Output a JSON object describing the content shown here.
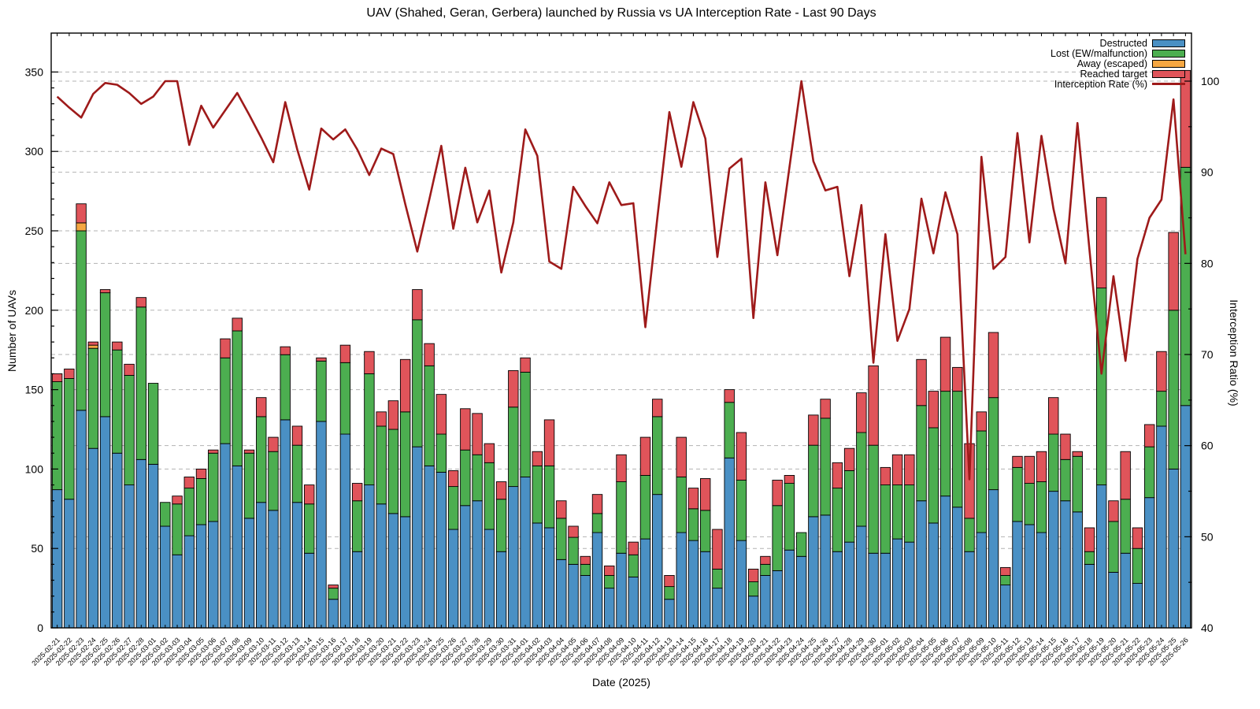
{
  "title": "UAV (Shahed, Geran, Gerbera) launched by Russia vs UA Interception Rate - Last 90 Days",
  "axes": {
    "left_title": "Number of UAVs",
    "right_title": "Interception Ratio (%)",
    "x_title": "Date (2025)",
    "left_ticks": [
      0,
      50,
      100,
      150,
      200,
      250,
      300,
      350
    ],
    "right_ticks": [
      40,
      50,
      60,
      70,
      80,
      90,
      100
    ]
  },
  "legend": {
    "items": [
      {
        "label": "Destructed",
        "color": "#4a90c4",
        "type": "box"
      },
      {
        "label": "Lost (EW/malfunction)",
        "color": "#4cae50",
        "type": "box"
      },
      {
        "label": "Away (escaped)",
        "color": "#f5a742",
        "type": "box"
      },
      {
        "label": "Reached target",
        "color": "#e0545a",
        "type": "box"
      },
      {
        "label": "Interception Rate (%)",
        "color": "#9e1a1a",
        "type": "line"
      }
    ]
  },
  "colors": {
    "destructed": "#4a90c4",
    "lost": "#4cae50",
    "away": "#f5a742",
    "reached": "#e0545a",
    "rate_line": "#9e1a1a",
    "grid": "#b3b3b3",
    "frame": "#000000"
  },
  "chart_data": {
    "type": "bar",
    "subtype": "stacked-bars-with-line",
    "title": "UAV (Shahed, Geran, Gerbera) launched by Russia vs UA Interception Rate - Last 90 Days",
    "xlabel": "Date (2025)",
    "ylabel": "Number of UAVs",
    "y2label": "Interception Ratio (%)",
    "ylim": [
      0,
      350
    ],
    "y2lim": [
      40,
      100
    ],
    "grid": "dashed, both y-axes",
    "legend_position": "top-right inside plot",
    "categories": [
      "2025-02-21",
      "2025-02-22",
      "2025-02-23",
      "2025-02-24",
      "2025-02-25",
      "2025-02-26",
      "2025-02-27",
      "2025-02-28",
      "2025-03-01",
      "2025-03-02",
      "2025-03-03",
      "2025-03-04",
      "2025-03-05",
      "2025-03-06",
      "2025-03-07",
      "2025-03-08",
      "2025-03-09",
      "2025-03-10",
      "2025-03-11",
      "2025-03-12",
      "2025-03-13",
      "2025-03-14",
      "2025-03-15",
      "2025-03-16",
      "2025-03-17",
      "2025-03-18",
      "2025-03-19",
      "2025-03-20",
      "2025-03-21",
      "2025-03-22",
      "2025-03-23",
      "2025-03-24",
      "2025-03-25",
      "2025-03-26",
      "2025-03-27",
      "2025-03-28",
      "2025-03-29",
      "2025-03-30",
      "2025-03-31",
      "2025-04-01",
      "2025-04-02",
      "2025-04-03",
      "2025-04-04",
      "2025-04-05",
      "2025-04-06",
      "2025-04-07",
      "2025-04-08",
      "2025-04-09",
      "2025-04-10",
      "2025-04-11",
      "2025-04-12",
      "2025-04-13",
      "2025-04-14",
      "2025-04-15",
      "2025-04-16",
      "2025-04-17",
      "2025-04-18",
      "2025-04-19",
      "2025-04-20",
      "2025-04-21",
      "2025-04-22",
      "2025-04-23",
      "2025-04-24",
      "2025-04-25",
      "2025-04-26",
      "2025-04-27",
      "2025-04-28",
      "2025-04-29",
      "2025-04-30",
      "2025-05-01",
      "2025-05-02",
      "2025-05-03",
      "2025-05-04",
      "2025-05-05",
      "2025-05-06",
      "2025-05-07",
      "2025-05-08",
      "2025-05-09",
      "2025-05-10",
      "2025-05-11",
      "2025-05-12",
      "2025-05-13",
      "2025-05-14",
      "2025-05-15",
      "2025-05-16",
      "2025-05-17",
      "2025-05-18",
      "2025-05-19",
      "2025-05-20",
      "2025-05-21",
      "2025-05-22",
      "2025-05-23",
      "2025-05-24",
      "2025-05-25",
      "2025-05-26"
    ],
    "series": [
      {
        "name": "Destructed",
        "color": "#4a90c4",
        "values": [
          87,
          81,
          137,
          113,
          133,
          110,
          90,
          106,
          103,
          64,
          46,
          58,
          65,
          67,
          116,
          102,
          69,
          79,
          74,
          131,
          79,
          47,
          130,
          18,
          122,
          48,
          90,
          78,
          72,
          70,
          114,
          102,
          98,
          62,
          77,
          80,
          62,
          48,
          89,
          95,
          66,
          63,
          43,
          40,
          33,
          60,
          25,
          47,
          32,
          56,
          84,
          18,
          60,
          55,
          48,
          25,
          107,
          55,
          20,
          33,
          36,
          49,
          45,
          70,
          71,
          48,
          54,
          64,
          47,
          47,
          56,
          54,
          80,
          66,
          83,
          76,
          48,
          60,
          87,
          27,
          67,
          65,
          60,
          86,
          80,
          73,
          40,
          90,
          35,
          47,
          28,
          82,
          127,
          100,
          140
        ]
      },
      {
        "name": "Lost (EW/malfunction)",
        "color": "#4cae50",
        "values": [
          68,
          76,
          113,
          63,
          78,
          65,
          69,
          96,
          51,
          15,
          32,
          30,
          29,
          43,
          54,
          85,
          41,
          54,
          37,
          41,
          36,
          31,
          38,
          7,
          45,
          32,
          70,
          49,
          53,
          66,
          80,
          63,
          24,
          27,
          35,
          29,
          42,
          33,
          50,
          66,
          36,
          39,
          26,
          17,
          7,
          12,
          8,
          45,
          14,
          40,
          49,
          8,
          35,
          20,
          26,
          12,
          35,
          38,
          9,
          7,
          41,
          42,
          15,
          45,
          61,
          40,
          45,
          59,
          68,
          43,
          34,
          36,
          60,
          60,
          66,
          73,
          21,
          64,
          58,
          6,
          34,
          26,
          32,
          36,
          26,
          35,
          8,
          124,
          32,
          34,
          22,
          32,
          22,
          100,
          150
        ]
      },
      {
        "name": "Away (escaped)",
        "color": "#f5a742",
        "values": [
          0,
          0,
          5,
          2,
          0,
          0,
          0,
          0,
          0,
          0,
          0,
          0,
          0,
          0,
          0,
          0,
          0,
          0,
          0,
          0,
          0,
          0,
          0,
          0,
          0,
          0,
          0,
          0,
          0,
          0,
          0,
          0,
          0,
          0,
          0,
          0,
          0,
          0,
          0,
          0,
          0,
          0,
          0,
          0,
          0,
          0,
          0,
          0,
          0,
          0,
          0,
          0,
          0,
          0,
          0,
          0,
          0,
          0,
          0,
          0,
          0,
          0,
          0,
          0,
          0,
          0,
          0,
          0,
          0,
          0,
          0,
          0,
          0,
          0,
          0,
          0,
          0,
          0,
          0,
          0,
          0,
          0,
          0,
          0,
          0,
          0,
          0,
          0,
          0,
          0,
          0,
          0,
          0,
          0,
          0
        ]
      },
      {
        "name": "Reached target",
        "color": "#e0545a",
        "values": [
          5,
          6,
          12,
          2,
          2,
          5,
          7,
          6,
          0,
          0,
          5,
          7,
          6,
          2,
          12,
          8,
          2,
          12,
          9,
          5,
          12,
          12,
          2,
          2,
          11,
          11,
          14,
          9,
          18,
          33,
          19,
          14,
          25,
          10,
          26,
          26,
          12,
          11,
          23,
          9,
          9,
          29,
          11,
          7,
          5,
          12,
          6,
          17,
          8,
          24,
          11,
          7,
          25,
          13,
          20,
          25,
          8,
          30,
          8,
          5,
          16,
          5,
          0,
          19,
          12,
          16,
          14,
          25,
          50,
          11,
          19,
          19,
          29,
          23,
          34,
          15,
          47,
          12,
          41,
          5,
          7,
          17,
          19,
          23,
          16,
          3,
          15,
          57,
          13,
          30,
          13,
          14,
          25,
          49,
          61
        ]
      }
    ],
    "line_series": {
      "name": "Interception Rate (%)",
      "color": "#9e1a1a",
      "axis": "right",
      "values": [
        98.3,
        97.1,
        96.0,
        98.6,
        99.8,
        99.6,
        98.7,
        97.5,
        98.3,
        100,
        100,
        93.0,
        97.3,
        94.9,
        96.8,
        98.7,
        96.3,
        93.8,
        91.1,
        97.7,
        92.5,
        88.1,
        94.8,
        93.6,
        94.7,
        92.5,
        89.7,
        92.6,
        92.0,
        86.5,
        81.3,
        87.0,
        92.9,
        83.8,
        90.5,
        84.5,
        88.0,
        79.0,
        84.5,
        94.7,
        91.8,
        80.2,
        79.4,
        88.4,
        86.3,
        84.4,
        88.9,
        86.4,
        86.6,
        73.0,
        85.0,
        96.6,
        90.6,
        97.7,
        93.7,
        80.7,
        90.4,
        91.5,
        74.0,
        88.9,
        80.9,
        90.5,
        100,
        91.2,
        88.0,
        88.4,
        78.6,
        86.4,
        69.1,
        83.2,
        71.5,
        75.0,
        87.1,
        81.1,
        87.8,
        83.2,
        56.3,
        91.7,
        79.4,
        80.7,
        94.3,
        82.3,
        94.0,
        86.0,
        80.0,
        95.4,
        81.5,
        67.9,
        78.6,
        69.3,
        80.5,
        85.0,
        87.0,
        98.0,
        81.0
      ]
    }
  }
}
